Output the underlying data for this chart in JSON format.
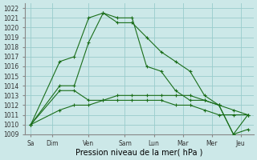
{
  "title": "Pression niveau de la mer( hPa )",
  "ylim": [
    1009,
    1022.5
  ],
  "yticks": [
    1009,
    1010,
    1011,
    1012,
    1013,
    1014,
    1015,
    1016,
    1017,
    1018,
    1019,
    1020,
    1021,
    1022
  ],
  "bg_color": "#cce8e8",
  "grid_color": "#99cccc",
  "line_color": "#1a6e1a",
  "series1": [
    1010.0,
    1016.5,
    1017.0,
    1021.0,
    1021.5,
    1020.5,
    1020.5,
    1019.0,
    1017.5,
    1016.5,
    1015.5,
    1013.0,
    1012.0,
    1009.0,
    1009.5
  ],
  "series2": [
    1010.0,
    1014.0,
    1014.0,
    1018.5,
    1021.5,
    1021.0,
    1021.0,
    1016.0,
    1015.5,
    1013.5,
    1012.5,
    1012.5,
    1012.0,
    1009.0,
    1011.0
  ],
  "series3": [
    1010.0,
    1013.5,
    1013.5,
    1012.5,
    1012.5,
    1013.0,
    1013.0,
    1013.0,
    1013.0,
    1013.0,
    1013.0,
    1012.5,
    1012.0,
    1011.5,
    1011.0
  ],
  "series4": [
    1010.0,
    1011.5,
    1012.0,
    1012.0,
    1012.5,
    1012.5,
    1012.5,
    1012.5,
    1012.5,
    1012.0,
    1012.0,
    1011.5,
    1011.0,
    1011.0,
    1011.0
  ],
  "x_positions": [
    0,
    1,
    1.5,
    2,
    2.5,
    3,
    3.5,
    4,
    4.5,
    5,
    5.5,
    6,
    6.5,
    7,
    7.5
  ],
  "xtick_positions": [
    0,
    0.75,
    2.0,
    3.25,
    4.25,
    5.25,
    6.25,
    7.25
  ],
  "xtick_labels": [
    "Sa",
    "Dim",
    "Ven",
    "Sam",
    "Lun",
    "Mar",
    "Mer",
    "Jeu"
  ],
  "xlim": [
    -0.2,
    7.7
  ],
  "title_fontsize": 7,
  "tick_fontsize": 5.5
}
